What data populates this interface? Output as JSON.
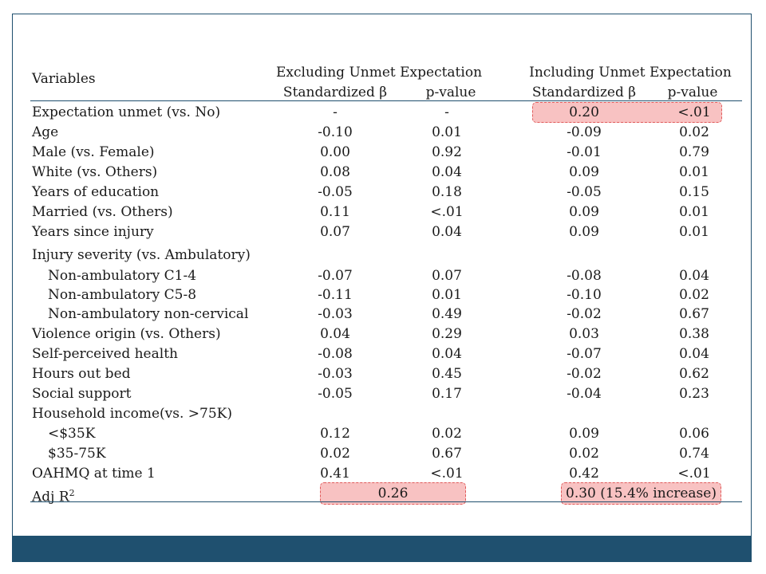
{
  "table": {
    "header_variables": "Variables",
    "group_excluding": "Excluding Unmet Expectation",
    "group_including": "Including Unmet Expectation",
    "sub_beta": "Standardized β",
    "sub_p": "p-value",
    "rows": [
      {
        "label": "Expectation unmet (vs. No)",
        "b1": "-",
        "p1": "-",
        "b2": "0.20",
        "p2": "<.01"
      },
      {
        "label": "Age",
        "b1": "-0.10",
        "p1": "0.01",
        "b2": "-0.09",
        "p2": "0.02"
      },
      {
        "label": "Male (vs. Female)",
        "b1": "0.00",
        "p1": "0.92",
        "b2": "-0.01",
        "p2": "0.79"
      },
      {
        "label": "White (vs. Others)",
        "b1": "0.08",
        "p1": "0.04",
        "b2": "0.09",
        "p2": "0.01"
      },
      {
        "label": "Years of education",
        "b1": "-0.05",
        "p1": "0.18",
        "b2": "-0.05",
        "p2": "0.15"
      },
      {
        "label": "Married (vs. Others)",
        "b1": "0.11",
        "p1": "<.01",
        "b2": "0.09",
        "p2": "0.01"
      },
      {
        "label": "Years since injury",
        "b1": "0.07",
        "p1": "0.04",
        "b2": "0.09",
        "p2": "0.01"
      },
      {
        "label": "Injury severity (vs. Ambulatory)"
      },
      {
        "label": "Non-ambulatory C1-4",
        "b1": "-0.07",
        "p1": "0.07",
        "b2": "-0.08",
        "p2": "0.04"
      },
      {
        "label": "Non-ambulatory C5-8",
        "b1": "-0.11",
        "p1": "0.01",
        "b2": "-0.10",
        "p2": "0.02"
      },
      {
        "label": "Non-ambulatory non-cervical",
        "b1": "-0.03",
        "p1": "0.49",
        "b2": "-0.02",
        "p2": "0.67"
      },
      {
        "label": "Violence origin (vs. Others)",
        "b1": "0.04",
        "p1": "0.29",
        "b2": "0.03",
        "p2": "0.38"
      },
      {
        "label": "Self-perceived health",
        "b1": "-0.08",
        "p1": "0.04",
        "b2": "-0.07",
        "p2": "0.04"
      },
      {
        "label": "Hours out bed",
        "b1": "-0.03",
        "p1": "0.45",
        "b2": "-0.02",
        "p2": "0.62"
      },
      {
        "label": "Social support",
        "b1": "-0.05",
        "p1": "0.17",
        "b2": "-0.04",
        "p2": "0.23"
      },
      {
        "label": "Household income(vs. >75K)"
      },
      {
        "label": "<$35K",
        "b1": "0.12",
        "p1": "0.02",
        "b2": "0.09",
        "p2": "0.06"
      },
      {
        "label": "$35-75K",
        "b1": "0.02",
        "p1": "0.67",
        "b2": "0.02",
        "p2": "0.74"
      },
      {
        "label": "OAHMQ at time 1",
        "b1": "0.41",
        "p1": "<.01",
        "b2": "0.42",
        "p2": "<.01"
      }
    ],
    "adj_r2": {
      "label": "Adj R",
      "label_sup": "2",
      "excl": "0.26",
      "incl": "0.30 (15.4% increase)"
    }
  },
  "colors": {
    "accent": "#1f506f",
    "highlight_fill": "#f8c2c2",
    "highlight_border": "#e05a5a"
  }
}
